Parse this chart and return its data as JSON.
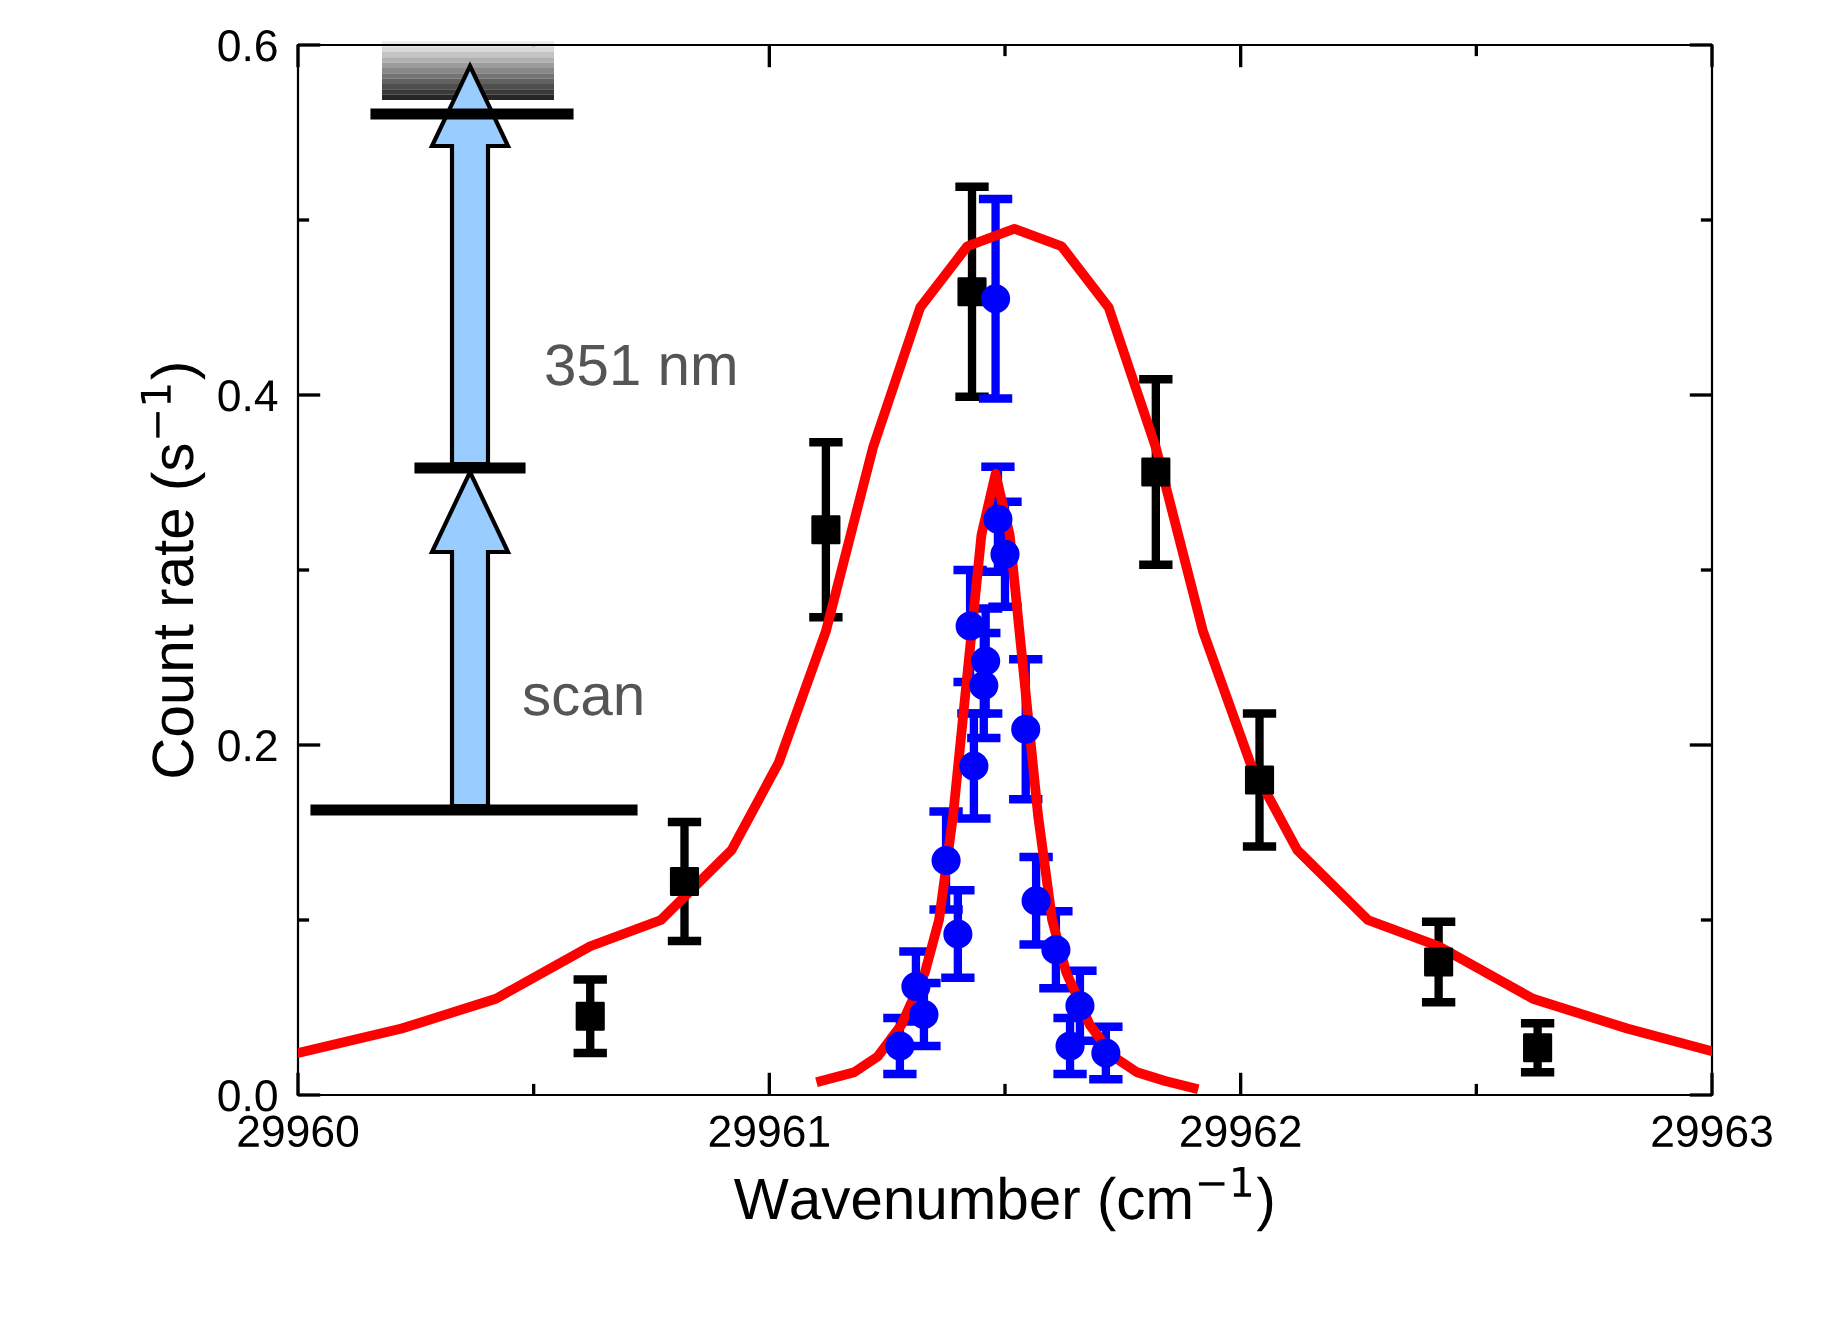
{
  "chart_data": {
    "type": "scatter",
    "xlabel": "Wavenumber (cm$^{−1}$)",
    "ylabel": "Count rate (s$^{−1}$)",
    "xlim": [
      29960,
      29963
    ],
    "xticks": [
      29960,
      29961,
      29962,
      29963
    ],
    "ylim": [
      0,
      0.6
    ],
    "yticks": [
      {
        "value": 0,
        "label": "0.0"
      },
      0.2,
      0.4,
      0.6
    ],
    "grid": false,
    "legend": false,
    "annotations": [
      "351 nm",
      "scan"
    ],
    "series": [
      {
        "marker": "square",
        "color": "#000000",
        "x": [
          29960.62,
          29960.82,
          29961.12,
          29961.43,
          29961.82,
          29962.04,
          29962.42,
          29962.63
        ],
        "values": [
          0.045,
          0.122,
          0.323,
          0.459,
          0.356,
          0.18,
          0.076,
          0.027
        ],
        "errors": [
          0.021,
          0.034,
          0.05,
          0.06,
          0.053,
          0.038,
          0.023,
          0.014
        ]
      },
      {
        "marker": "circle",
        "color": "#0000ff",
        "x": [
          29961.48,
          29961.5,
          29961.485,
          29961.426,
          29961.459,
          29961.455,
          29961.544,
          29961.434,
          29961.375,
          29961.566,
          29961.4,
          29961.608,
          29961.311,
          29961.328,
          29961.659,
          29961.277,
          29961.638,
          29961.714
        ],
        "values": [
          0.455,
          0.309,
          0.329,
          0.268,
          0.248,
          0.234,
          0.209,
          0.188,
          0.134,
          0.111,
          0.092,
          0.083,
          0.062,
          0.046,
          0.051,
          0.028,
          0.028,
          0.024
        ],
        "errors": [
          0.057,
          0.03,
          0.03,
          0.032,
          0.03,
          0.03,
          0.04,
          0.03,
          0.028,
          0.025,
          0.025,
          0.022,
          0.02,
          0.018,
          0.02,
          0.016,
          0.016,
          0.015
        ]
      },
      {
        "type": "line",
        "marker": "none",
        "line_style": "solid",
        "color": "#ff0000",
        "x": [
          29960,
          29960.22,
          29960.42,
          29960.62,
          29960.77,
          29960.92,
          29961.02,
          29961.12,
          29961.22,
          29961.32,
          29961.42,
          29961.52,
          29961.62,
          29961.72,
          29961.82,
          29961.92,
          29962.02,
          29962.12,
          29962.27,
          29962.42,
          29962.62,
          29962.82,
          29963
        ],
        "values": [
          0.024,
          0.038,
          0.055,
          0.085,
          0.1,
          0.14,
          0.19,
          0.265,
          0.37,
          0.45,
          0.485,
          0.495,
          0.485,
          0.45,
          0.37,
          0.265,
          0.19,
          0.14,
          0.1,
          0.085,
          0.055,
          0.038,
          0.025
        ]
      },
      {
        "type": "line",
        "marker": "none",
        "line_style": "solid",
        "color": "#ff0000",
        "x": [
          29961.11,
          29961.18,
          29961.23,
          29961.28,
          29961.33,
          29961.36,
          29961.39,
          29961.42,
          29961.45,
          29961.48,
          29961.51,
          29961.54,
          29961.57,
          29961.6,
          29961.63,
          29961.68,
          29961.73,
          29961.78,
          29961.84,
          29961.9
        ],
        "values": [
          0.008,
          0.013,
          0.022,
          0.04,
          0.07,
          0.1,
          0.16,
          0.24,
          0.32,
          0.355,
          0.32,
          0.24,
          0.16,
          0.1,
          0.07,
          0.04,
          0.022,
          0.013,
          0.008,
          0.004
        ]
      }
    ]
  }
}
